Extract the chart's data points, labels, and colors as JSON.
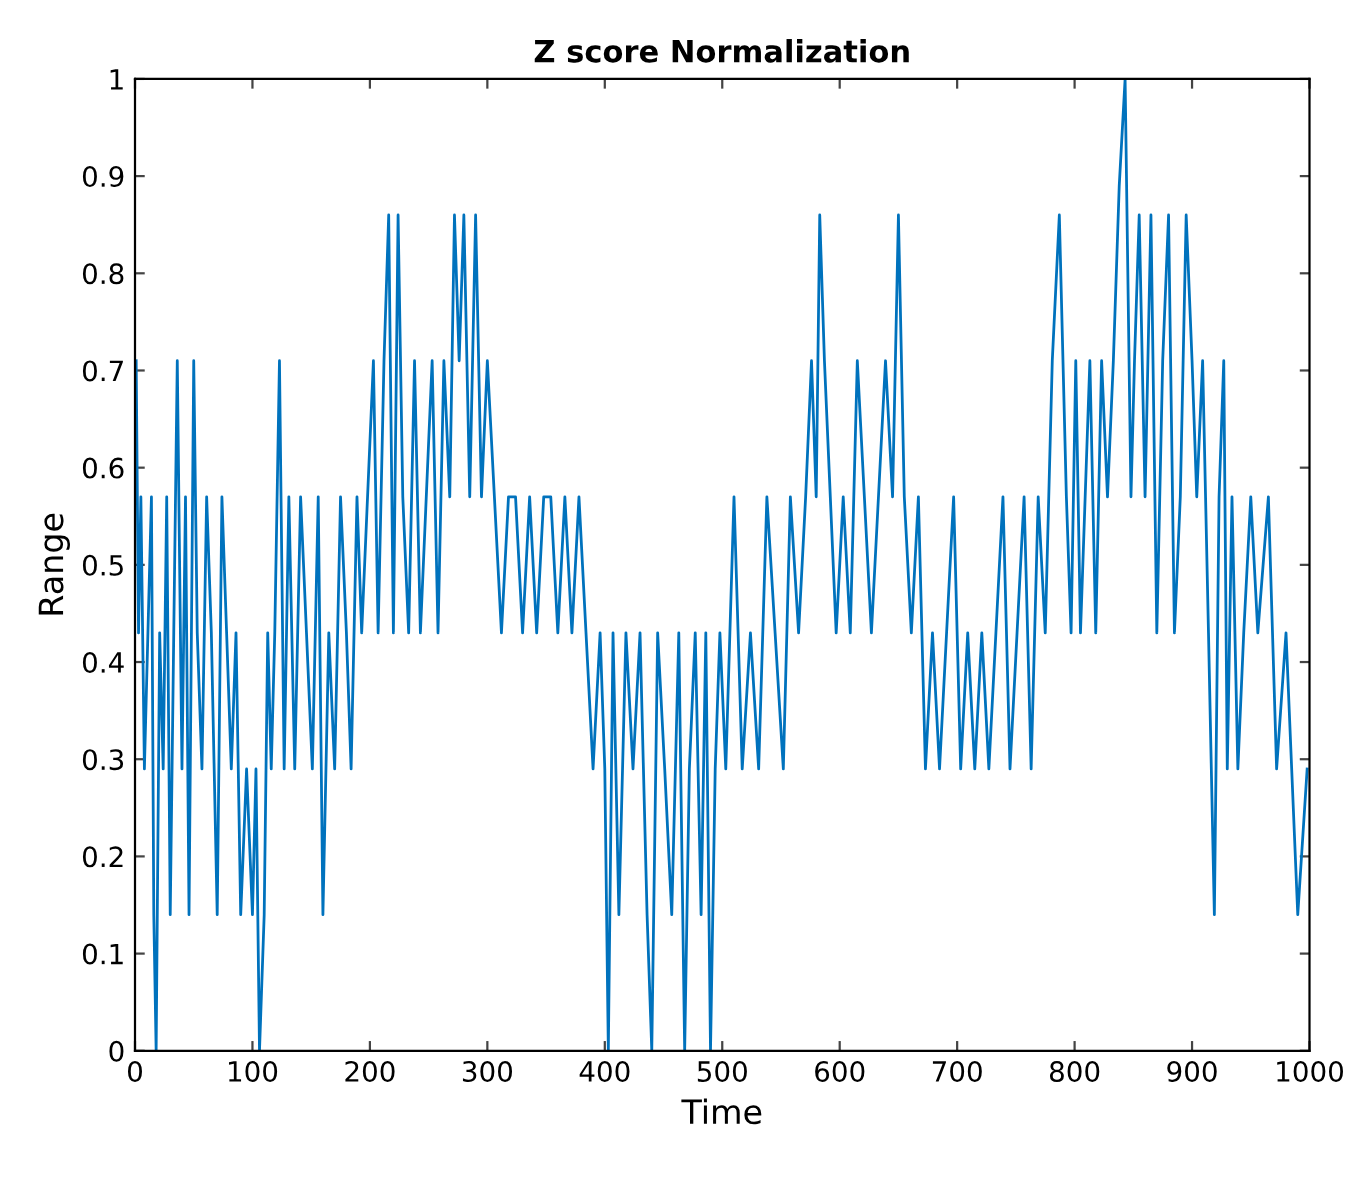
{
  "chart_data": {
    "type": "line",
    "title": "Z score Normalization",
    "xlabel": "Time",
    "ylabel": "Range",
    "xlim": [
      0,
      1000
    ],
    "ylim": [
      0,
      1
    ],
    "xticks": [
      0,
      100,
      200,
      300,
      400,
      500,
      600,
      700,
      800,
      900,
      1000
    ],
    "yticks": [
      0,
      0.1,
      0.2,
      0.3,
      0.4,
      0.5,
      0.6,
      0.7,
      0.8,
      0.9,
      1
    ],
    "grid": false,
    "series": [
      {
        "color": "#0072bd",
        "x": [
          1,
          3,
          5,
          8,
          11,
          14,
          16,
          18,
          21,
          24,
          27,
          30,
          33,
          36,
          40,
          43,
          46,
          50,
          53,
          57,
          61,
          65,
          70,
          74,
          78,
          82,
          86,
          90,
          95,
          100,
          103,
          106,
          110,
          113,
          116,
          119,
          123,
          127,
          131,
          136,
          141,
          146,
          151,
          156,
          160,
          165,
          170,
          175,
          180,
          184,
          189,
          193,
          198,
          203,
          207,
          212,
          216,
          220,
          224,
          228,
          233,
          238,
          243,
          248,
          253,
          258,
          263,
          268,
          272,
          276,
          280,
          285,
          290,
          295,
          300,
          306,
          312,
          318,
          324,
          330,
          336,
          342,
          348,
          354,
          360,
          366,
          372,
          378,
          384,
          390,
          396,
          400,
          403,
          407,
          412,
          418,
          424,
          430,
          436,
          440,
          445,
          451,
          457,
          463,
          468,
          472,
          477,
          482,
          486,
          490,
          494,
          498,
          503,
          510,
          517,
          524,
          531,
          538,
          545,
          552,
          558,
          565,
          571,
          576,
          580,
          583,
          587,
          592,
          597,
          603,
          609,
          615,
          621,
          627,
          633,
          639,
          645,
          650,
          655,
          661,
          667,
          673,
          679,
          685,
          691,
          697,
          703,
          709,
          715,
          721,
          727,
          733,
          739,
          745,
          751,
          757,
          763,
          769,
          775,
          781,
          787,
          793,
          797,
          801,
          805,
          809,
          813,
          818,
          823,
          828,
          833,
          838,
          843,
          848,
          851,
          855,
          860,
          865,
          870,
          875,
          880,
          885,
          890,
          895,
          900,
          904,
          909,
          914,
          919,
          923,
          927,
          930,
          934,
          939,
          944,
          950,
          956,
          965,
          972,
          980,
          990,
          998
        ],
        "values": [
          0.71,
          0.43,
          0.57,
          0.29,
          0.43,
          0.57,
          0.14,
          0,
          0.43,
          0.29,
          0.57,
          0.14,
          0.43,
          0.71,
          0.29,
          0.57,
          0.14,
          0.71,
          0.43,
          0.29,
          0.57,
          0.43,
          0.14,
          0.57,
          0.43,
          0.29,
          0.43,
          0.14,
          0.29,
          0.14,
          0.29,
          0.0,
          0.14,
          0.43,
          0.29,
          0.43,
          0.71,
          0.29,
          0.57,
          0.29,
          0.57,
          0.43,
          0.29,
          0.57,
          0.14,
          0.43,
          0.29,
          0.57,
          0.43,
          0.29,
          0.57,
          0.43,
          0.57,
          0.71,
          0.43,
          0.71,
          0.86,
          0.43,
          0.86,
          0.57,
          0.43,
          0.71,
          0.43,
          0.57,
          0.71,
          0.43,
          0.71,
          0.57,
          0.86,
          0.71,
          0.86,
          0.57,
          0.86,
          0.57,
          0.71,
          0.57,
          0.43,
          0.57,
          0.57,
          0.43,
          0.57,
          0.43,
          0.57,
          0.57,
          0.43,
          0.57,
          0.43,
          0.57,
          0.43,
          0.29,
          0.43,
          0.29,
          0.0,
          0.43,
          0.14,
          0.43,
          0.29,
          0.43,
          0.14,
          0.0,
          0.43,
          0.29,
          0.14,
          0.43,
          0.0,
          0.29,
          0.43,
          0.14,
          0.43,
          0.0,
          0.29,
          0.43,
          0.29,
          0.57,
          0.29,
          0.43,
          0.29,
          0.57,
          0.43,
          0.29,
          0.57,
          0.43,
          0.57,
          0.71,
          0.57,
          0.86,
          0.71,
          0.57,
          0.43,
          0.57,
          0.43,
          0.71,
          0.57,
          0.43,
          0.57,
          0.71,
          0.57,
          0.86,
          0.57,
          0.43,
          0.57,
          0.29,
          0.43,
          0.29,
          0.43,
          0.57,
          0.29,
          0.43,
          0.29,
          0.43,
          0.29,
          0.43,
          0.57,
          0.29,
          0.43,
          0.57,
          0.29,
          0.57,
          0.43,
          0.71,
          0.86,
          0.57,
          0.43,
          0.71,
          0.43,
          0.57,
          0.71,
          0.43,
          0.71,
          0.57,
          0.71,
          0.89,
          1.0,
          0.57,
          0.71,
          0.86,
          0.57,
          0.86,
          0.43,
          0.71,
          0.86,
          0.43,
          0.57,
          0.86,
          0.71,
          0.57,
          0.71,
          0.43,
          0.14,
          0.57,
          0.71,
          0.29,
          0.57,
          0.29,
          0.43,
          0.57,
          0.43,
          0.57,
          0.29,
          0.43,
          0.14,
          0.29
        ]
      }
    ]
  }
}
